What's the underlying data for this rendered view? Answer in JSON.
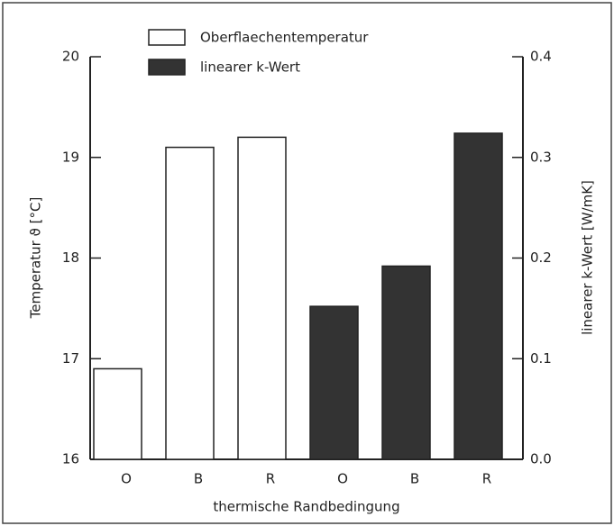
{
  "chart_data": {
    "type": "bar",
    "categories": [
      "O",
      "B",
      "R",
      "O",
      "B",
      "R"
    ],
    "series": [
      {
        "name": "Oberflaechentemperatur",
        "color": "#ffffff",
        "values": [
          16.9,
          19.1,
          19.2,
          null,
          null,
          null
        ]
      },
      {
        "name": "linearer k-Wert",
        "color": "#333333",
        "axis": "y2",
        "values": [
          null,
          null,
          null,
          0.152,
          0.192,
          0.324
        ]
      }
    ],
    "ylabel": "Temperatur ϑ [°C]",
    "y2label": "linearer k-Wert [W/mK]",
    "xlabel": "thermische Randbedingung",
    "ylim": [
      16,
      20
    ],
    "yticks": [
      16,
      17,
      18,
      19,
      20
    ],
    "y2lim": [
      0,
      0.4
    ],
    "y2ticks": [
      {
        "value": 0,
        "label": "0.0"
      },
      0.1,
      0.2,
      0.3,
      0.4
    ],
    "legend": "top",
    "grid": false
  }
}
